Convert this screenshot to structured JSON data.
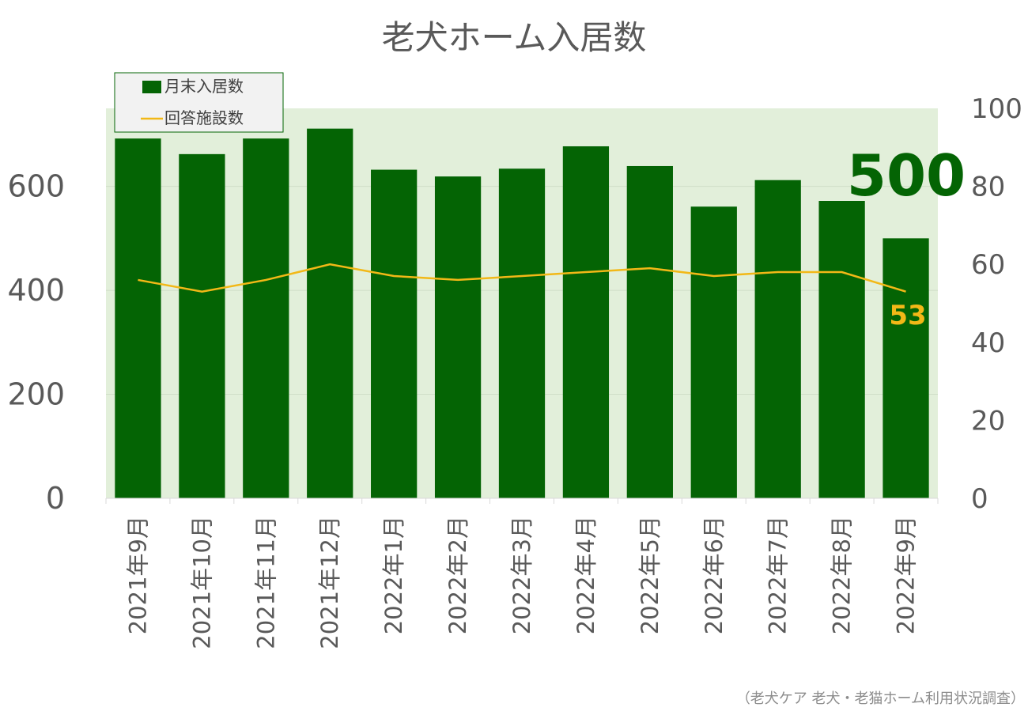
{
  "chart_data": {
    "type": "bar",
    "title": "老犬ホーム入居数",
    "categories": [
      "2021年9月",
      "2021年10月",
      "2021年11月",
      "2021年12月",
      "2022年1月",
      "2022年2月",
      "2022年3月",
      "2022年4月",
      "2022年5月",
      "2022年6月",
      "2022年7月",
      "2022年8月",
      "2022年9月"
    ],
    "series": [
      {
        "name": "月末入居数",
        "type": "bar",
        "axis": "left",
        "values": [
          692,
          662,
          692,
          711,
          632,
          619,
          634,
          677,
          639,
          561,
          612,
          572,
          500
        ]
      },
      {
        "name": "回答施設数",
        "type": "line",
        "axis": "right",
        "values": [
          56,
          53,
          56,
          60,
          57,
          56,
          57,
          58,
          59,
          57,
          58,
          58,
          53
        ]
      }
    ],
    "left_axis": {
      "ticks": [
        "0",
        "200",
        "400",
        "600"
      ],
      "ylim": [
        0,
        750
      ]
    },
    "right_axis": {
      "ticks": [
        "0",
        "20",
        "40",
        "60",
        "80",
        "100"
      ],
      "ylim": [
        0,
        100
      ]
    },
    "legend": {
      "position": "top-left",
      "items": [
        "月末入居数",
        "回答施設数"
      ]
    },
    "annotations": {
      "last_bar_label": "500",
      "last_line_label": "53"
    },
    "grid": true,
    "colors": {
      "bar": "#046404",
      "line": "#f2b817",
      "plot_bg": "#e2efda",
      "text": "#595959"
    }
  },
  "source": "（老犬ケア 老犬・老猫ホーム利用状況調査）"
}
